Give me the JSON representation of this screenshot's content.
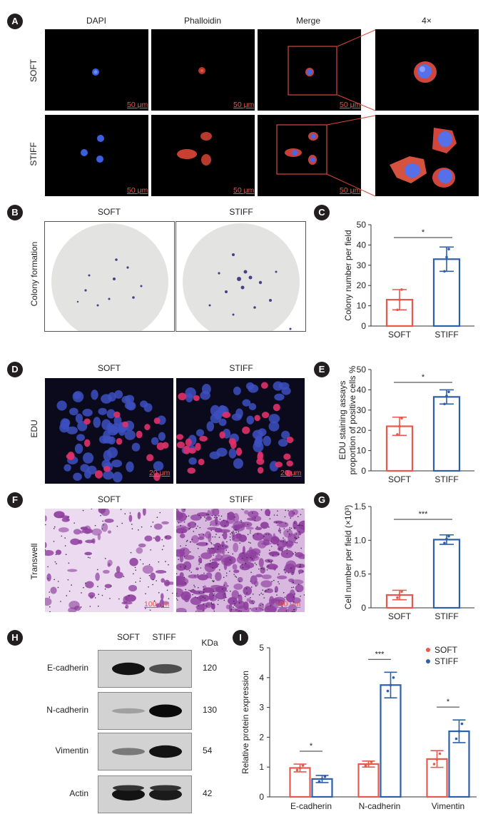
{
  "panel_labels": {
    "A": "A",
    "B": "B",
    "C": "C",
    "D": "D",
    "E": "E",
    "F": "F",
    "G": "G",
    "H": "H",
    "I": "I"
  },
  "panelA": {
    "columns": [
      "DAPI",
      "Phalloidin",
      "Merge",
      "4×"
    ],
    "rows": [
      "SOFT",
      "STIFF"
    ],
    "scale_bar": "50 μm"
  },
  "panelB": {
    "columns": [
      "SOFT",
      "STIFF"
    ],
    "row_label": "Colony formation"
  },
  "panelD": {
    "columns": [
      "SOFT",
      "STIFF"
    ],
    "row_label": "EDU",
    "scale_bar": "20 μm"
  },
  "panelF": {
    "columns": [
      "SOFT",
      "STIFF"
    ],
    "row_label": "Transwell",
    "scale_bar": "100 μm"
  },
  "panelH": {
    "columns": [
      "SOFT",
      "STIFF"
    ],
    "kda_header": "KDa",
    "proteins": [
      {
        "name": "E-cadherin",
        "kda": "120",
        "soft": 0.95,
        "stiff": 0.6
      },
      {
        "name": "N-cadherin",
        "kda": "130",
        "soft": 0.12,
        "stiff": 1.0
      },
      {
        "name": "Vimentin",
        "kda": "54",
        "soft": 0.35,
        "stiff": 0.95
      },
      {
        "name": "Actin",
        "kda": "42",
        "soft": 0.95,
        "stiff": 0.9
      }
    ]
  },
  "chart_data": [
    {
      "id": "C",
      "type": "bar",
      "categories": [
        "SOFT",
        "STIFF"
      ],
      "values": [
        13,
        33
      ],
      "errors": [
        5,
        6
      ],
      "points": [
        [
          8,
          13,
          18
        ],
        [
          27,
          34,
          38
        ]
      ],
      "colors": [
        "#e8584d",
        "#2f5fa8"
      ],
      "ylabel": "Colony number per field",
      "ylim": [
        0,
        50
      ],
      "yticks": [
        0,
        10,
        20,
        30,
        40,
        50
      ],
      "yticklabels": [
        "0",
        "10",
        "20",
        "30",
        "40",
        "50"
      ],
      "significance": "*"
    },
    {
      "id": "E",
      "type": "bar",
      "categories": [
        "SOFT",
        "STIFF"
      ],
      "values": [
        22,
        36.5
      ],
      "errors": [
        4.5,
        3.5
      ],
      "points": [
        [
          18,
          22,
          26
        ],
        [
          33,
          37,
          39
        ]
      ],
      "colors": [
        "#e8584d",
        "#2f5fa8"
      ],
      "ylabel": "EDU staining assays",
      "ylabel2": "proportion of positive cells %",
      "ylim": [
        0,
        50
      ],
      "yticks": [
        0,
        10,
        20,
        30,
        40,
        50
      ],
      "yticklabels": [
        "0",
        "10",
        "20",
        "30",
        "40",
        "50"
      ],
      "significance": "*"
    },
    {
      "id": "G",
      "type": "bar",
      "categories": [
        "SOFT",
        "STIFF"
      ],
      "values": [
        0.19,
        1.01
      ],
      "errors": [
        0.07,
        0.07
      ],
      "points": [
        [
          0.15,
          0.19,
          0.24
        ],
        [
          0.96,
          1.02,
          1.06
        ]
      ],
      "colors": [
        "#e8584d",
        "#2f5fa8"
      ],
      "ylabel": "Cell number per field (×10³)",
      "ylim": [
        0,
        1.5
      ],
      "yticks": [
        0,
        0.5,
        1.0,
        1.5
      ],
      "yticklabels": [
        "0",
        "0.5",
        "1.0",
        "1.5"
      ],
      "significance": "***"
    },
    {
      "id": "I",
      "type": "bar",
      "categories": [
        "E-cadherin",
        "N-cadherin",
        "Vimentin"
      ],
      "series": [
        {
          "name": "SOFT",
          "color": "#e8584d",
          "values": [
            0.97,
            1.1,
            1.27
          ],
          "errors": [
            0.13,
            0.1,
            0.28
          ],
          "points": [
            [
              0.9,
              0.97,
              1.05
            ],
            [
              1.05,
              1.1,
              1.17
            ],
            [
              1.1,
              1.25,
              1.45
            ]
          ]
        },
        {
          "name": "STIFF",
          "color": "#2f5fa8",
          "values": [
            0.6,
            3.75,
            2.2
          ],
          "errors": [
            0.12,
            0.43,
            0.38
          ],
          "points": [
            [
              0.52,
              0.6,
              0.68
            ],
            [
              3.55,
              3.75,
              4.0
            ],
            [
              1.95,
              2.2,
              2.45
            ]
          ]
        }
      ],
      "ylabel": "Relative protein expression",
      "ylim": [
        0,
        5
      ],
      "yticks": [
        0,
        1,
        2,
        3,
        4,
        5
      ],
      "yticklabels": [
        "0",
        "1",
        "2",
        "3",
        "4",
        "5"
      ],
      "significance": [
        "*",
        "***",
        "*"
      ],
      "legend": "top-right"
    }
  ]
}
